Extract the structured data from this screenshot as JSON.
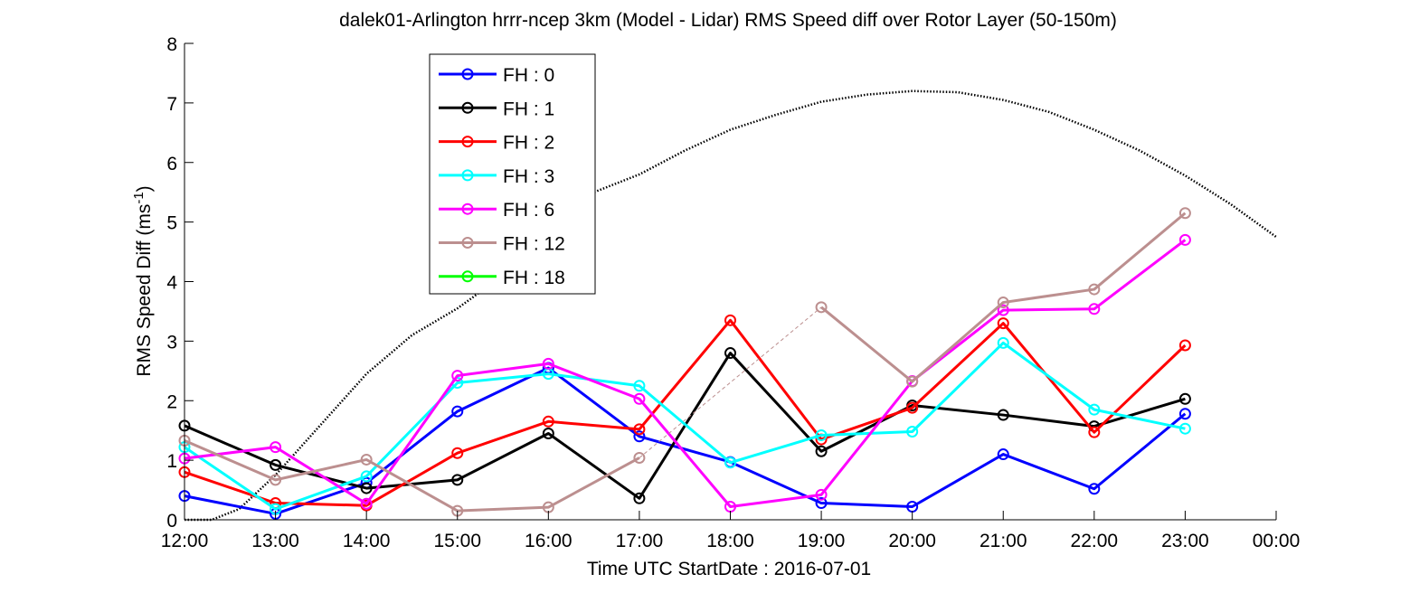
{
  "chart_data": {
    "type": "line",
    "title": "dalek01-Arlington hrrr-ncep 3km (Model - Lidar) RMS Speed diff over Rotor Layer (50-150m)",
    "ylabel_main": "RMS Speed Diff (ms",
    "ylabel_sup": "-1",
    "ylabel_close": ")",
    "xlabel": "Time UTC    StartDate : 2016-07-01",
    "ylim": [
      0,
      8
    ],
    "yticks": [
      "0",
      "1",
      "2",
      "3",
      "4",
      "5",
      "6",
      "7",
      "8"
    ],
    "xlim": [
      12,
      24
    ],
    "xticks": [
      "12:00",
      "13:00",
      "14:00",
      "15:00",
      "16:00",
      "17:00",
      "18:00",
      "19:00",
      "20:00",
      "21:00",
      "22:00",
      "23:00",
      "00:00"
    ],
    "legend_position": "top-left",
    "series": [
      {
        "name": "FH : 0",
        "color": "#0000ff",
        "x": [
          12,
          13,
          14,
          15,
          16,
          17,
          18,
          19,
          20,
          21,
          22,
          23
        ],
        "values": [
          0.4,
          0.1,
          0.62,
          1.82,
          2.55,
          1.4,
          0.97,
          0.28,
          0.22,
          1.1,
          0.52,
          1.78
        ]
      },
      {
        "name": "FH : 1",
        "color": "#000000",
        "x": [
          12,
          13,
          14,
          15,
          16,
          17,
          18,
          19,
          20,
          21,
          22,
          23
        ],
        "values": [
          1.58,
          0.92,
          0.53,
          0.67,
          1.45,
          0.36,
          2.8,
          1.15,
          1.92,
          1.76,
          1.57,
          2.03
        ]
      },
      {
        "name": "FH : 2",
        "color": "#ff0000",
        "x": [
          12,
          13,
          14,
          15,
          16,
          17,
          18,
          19,
          20,
          21,
          22,
          23
        ],
        "values": [
          0.8,
          0.28,
          0.24,
          1.12,
          1.65,
          1.52,
          3.35,
          1.35,
          1.88,
          3.3,
          1.47,
          2.93
        ]
      },
      {
        "name": "FH : 3",
        "color": "#00ffff",
        "x": [
          12,
          13,
          14,
          15,
          16,
          17,
          18,
          19,
          20,
          21,
          22,
          23
        ],
        "values": [
          1.22,
          0.18,
          0.73,
          2.3,
          2.45,
          2.25,
          0.96,
          1.42,
          1.48,
          2.97,
          1.85,
          1.53
        ]
      },
      {
        "name": "FH : 6",
        "color": "#ff00ff",
        "x": [
          12,
          13,
          14,
          15,
          16,
          17,
          18,
          19,
          20,
          21,
          22,
          23
        ],
        "values": [
          1.03,
          1.22,
          0.27,
          2.42,
          2.62,
          2.03,
          0.22,
          0.42,
          2.33,
          3.52,
          3.54,
          4.7
        ]
      },
      {
        "name": "FH : 12",
        "color": "#bc8f8f",
        "x": [
          12,
          13,
          14,
          15,
          16,
          17,
          19,
          20,
          21,
          22,
          23
        ],
        "values": [
          1.33,
          0.67,
          1.01,
          0.15,
          0.21,
          1.04,
          3.57,
          2.32,
          3.65,
          3.87,
          5.15
        ],
        "gap_bridge": {
          "from_x": 17,
          "to_x": 19
        }
      },
      {
        "name": "FH : 18",
        "color": "#00ff00",
        "x": [],
        "values": []
      }
    ],
    "reference_curve": {
      "style": "dotted",
      "color": "#000000",
      "x": [
        12,
        12.3,
        12.6,
        13,
        13.5,
        14,
        14.5,
        15,
        15.5,
        16,
        16.5,
        17,
        17.5,
        18,
        18.5,
        19,
        19.5,
        20,
        20.5,
        21,
        21.5,
        22,
        22.5,
        23,
        23.5,
        24
      ],
      "values": [
        0,
        0,
        0.18,
        0.75,
        1.6,
        2.45,
        3.1,
        3.55,
        4.1,
        4.85,
        5.5,
        5.8,
        6.2,
        6.55,
        6.8,
        7.02,
        7.14,
        7.2,
        7.18,
        7.05,
        6.85,
        6.55,
        6.2,
        5.78,
        5.3,
        4.75
      ]
    }
  }
}
